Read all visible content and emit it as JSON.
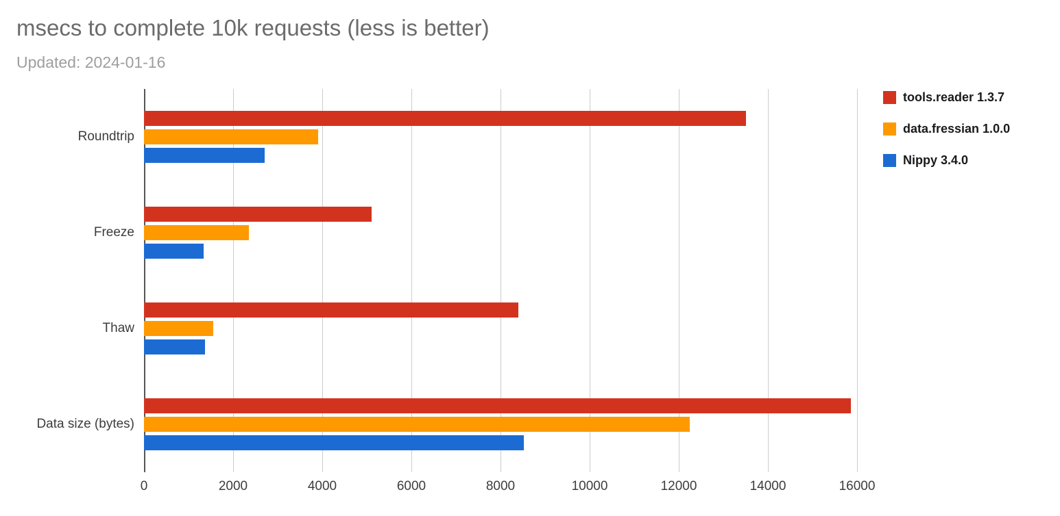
{
  "header": {
    "title": "msecs to complete 10k requests (less is better)",
    "subtitle": "Updated: 2024-01-16"
  },
  "chart_data": {
    "type": "bar",
    "orientation": "horizontal",
    "title": "msecs to complete 10k requests (less is better)",
    "subtitle": "Updated: 2024-01-16",
    "categories": [
      "Roundtrip",
      "Freeze",
      "Thaw",
      "Data size (bytes)"
    ],
    "series": [
      {
        "name": "tools.reader 1.3.7",
        "color": "#d2331f",
        "values": [
          13500,
          5100,
          8400,
          15860
        ]
      },
      {
        "name": "data.fressian 1.0.0",
        "color": "#ff9900",
        "values": [
          3900,
          2350,
          1550,
          12250
        ]
      },
      {
        "name": "Nippy 3.4.0",
        "color": "#1c6bd3",
        "values": [
          2700,
          1340,
          1370,
          8530
        ]
      }
    ],
    "xlabel": "",
    "ylabel": "",
    "xlim": [
      0,
      16000
    ],
    "x_ticks": [
      0,
      2000,
      4000,
      6000,
      8000,
      10000,
      12000,
      14000,
      16000
    ],
    "grid": true,
    "legend_position": "top-right"
  }
}
